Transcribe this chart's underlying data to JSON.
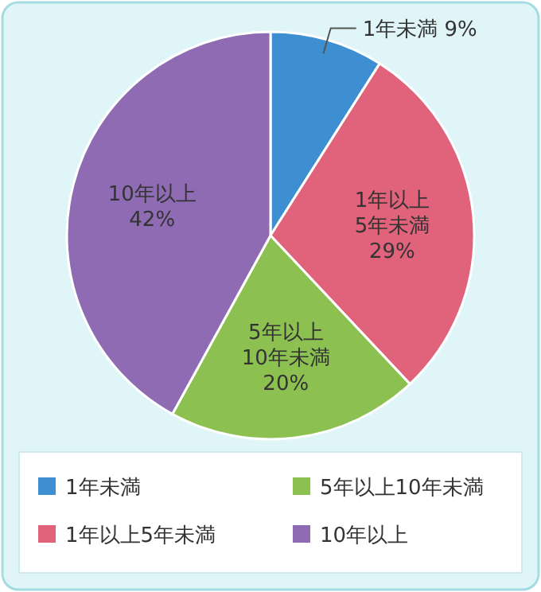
{
  "chart_data": {
    "type": "pie",
    "categories": [
      "1年未満",
      "1年以上5年未満",
      "5年以上10年未満",
      "10年以上"
    ],
    "values": [
      9,
      29,
      20,
      42
    ],
    "colors": [
      "#3d8fd1",
      "#e0637b",
      "#8cc152",
      "#8f6bb3"
    ],
    "value_labels": [
      "1年未満 9%",
      "1年以上\n5年未満\n29%",
      "5年以上\n10年未満\n20%",
      "10年以上\n42%"
    ],
    "legend": "bottom"
  }
}
